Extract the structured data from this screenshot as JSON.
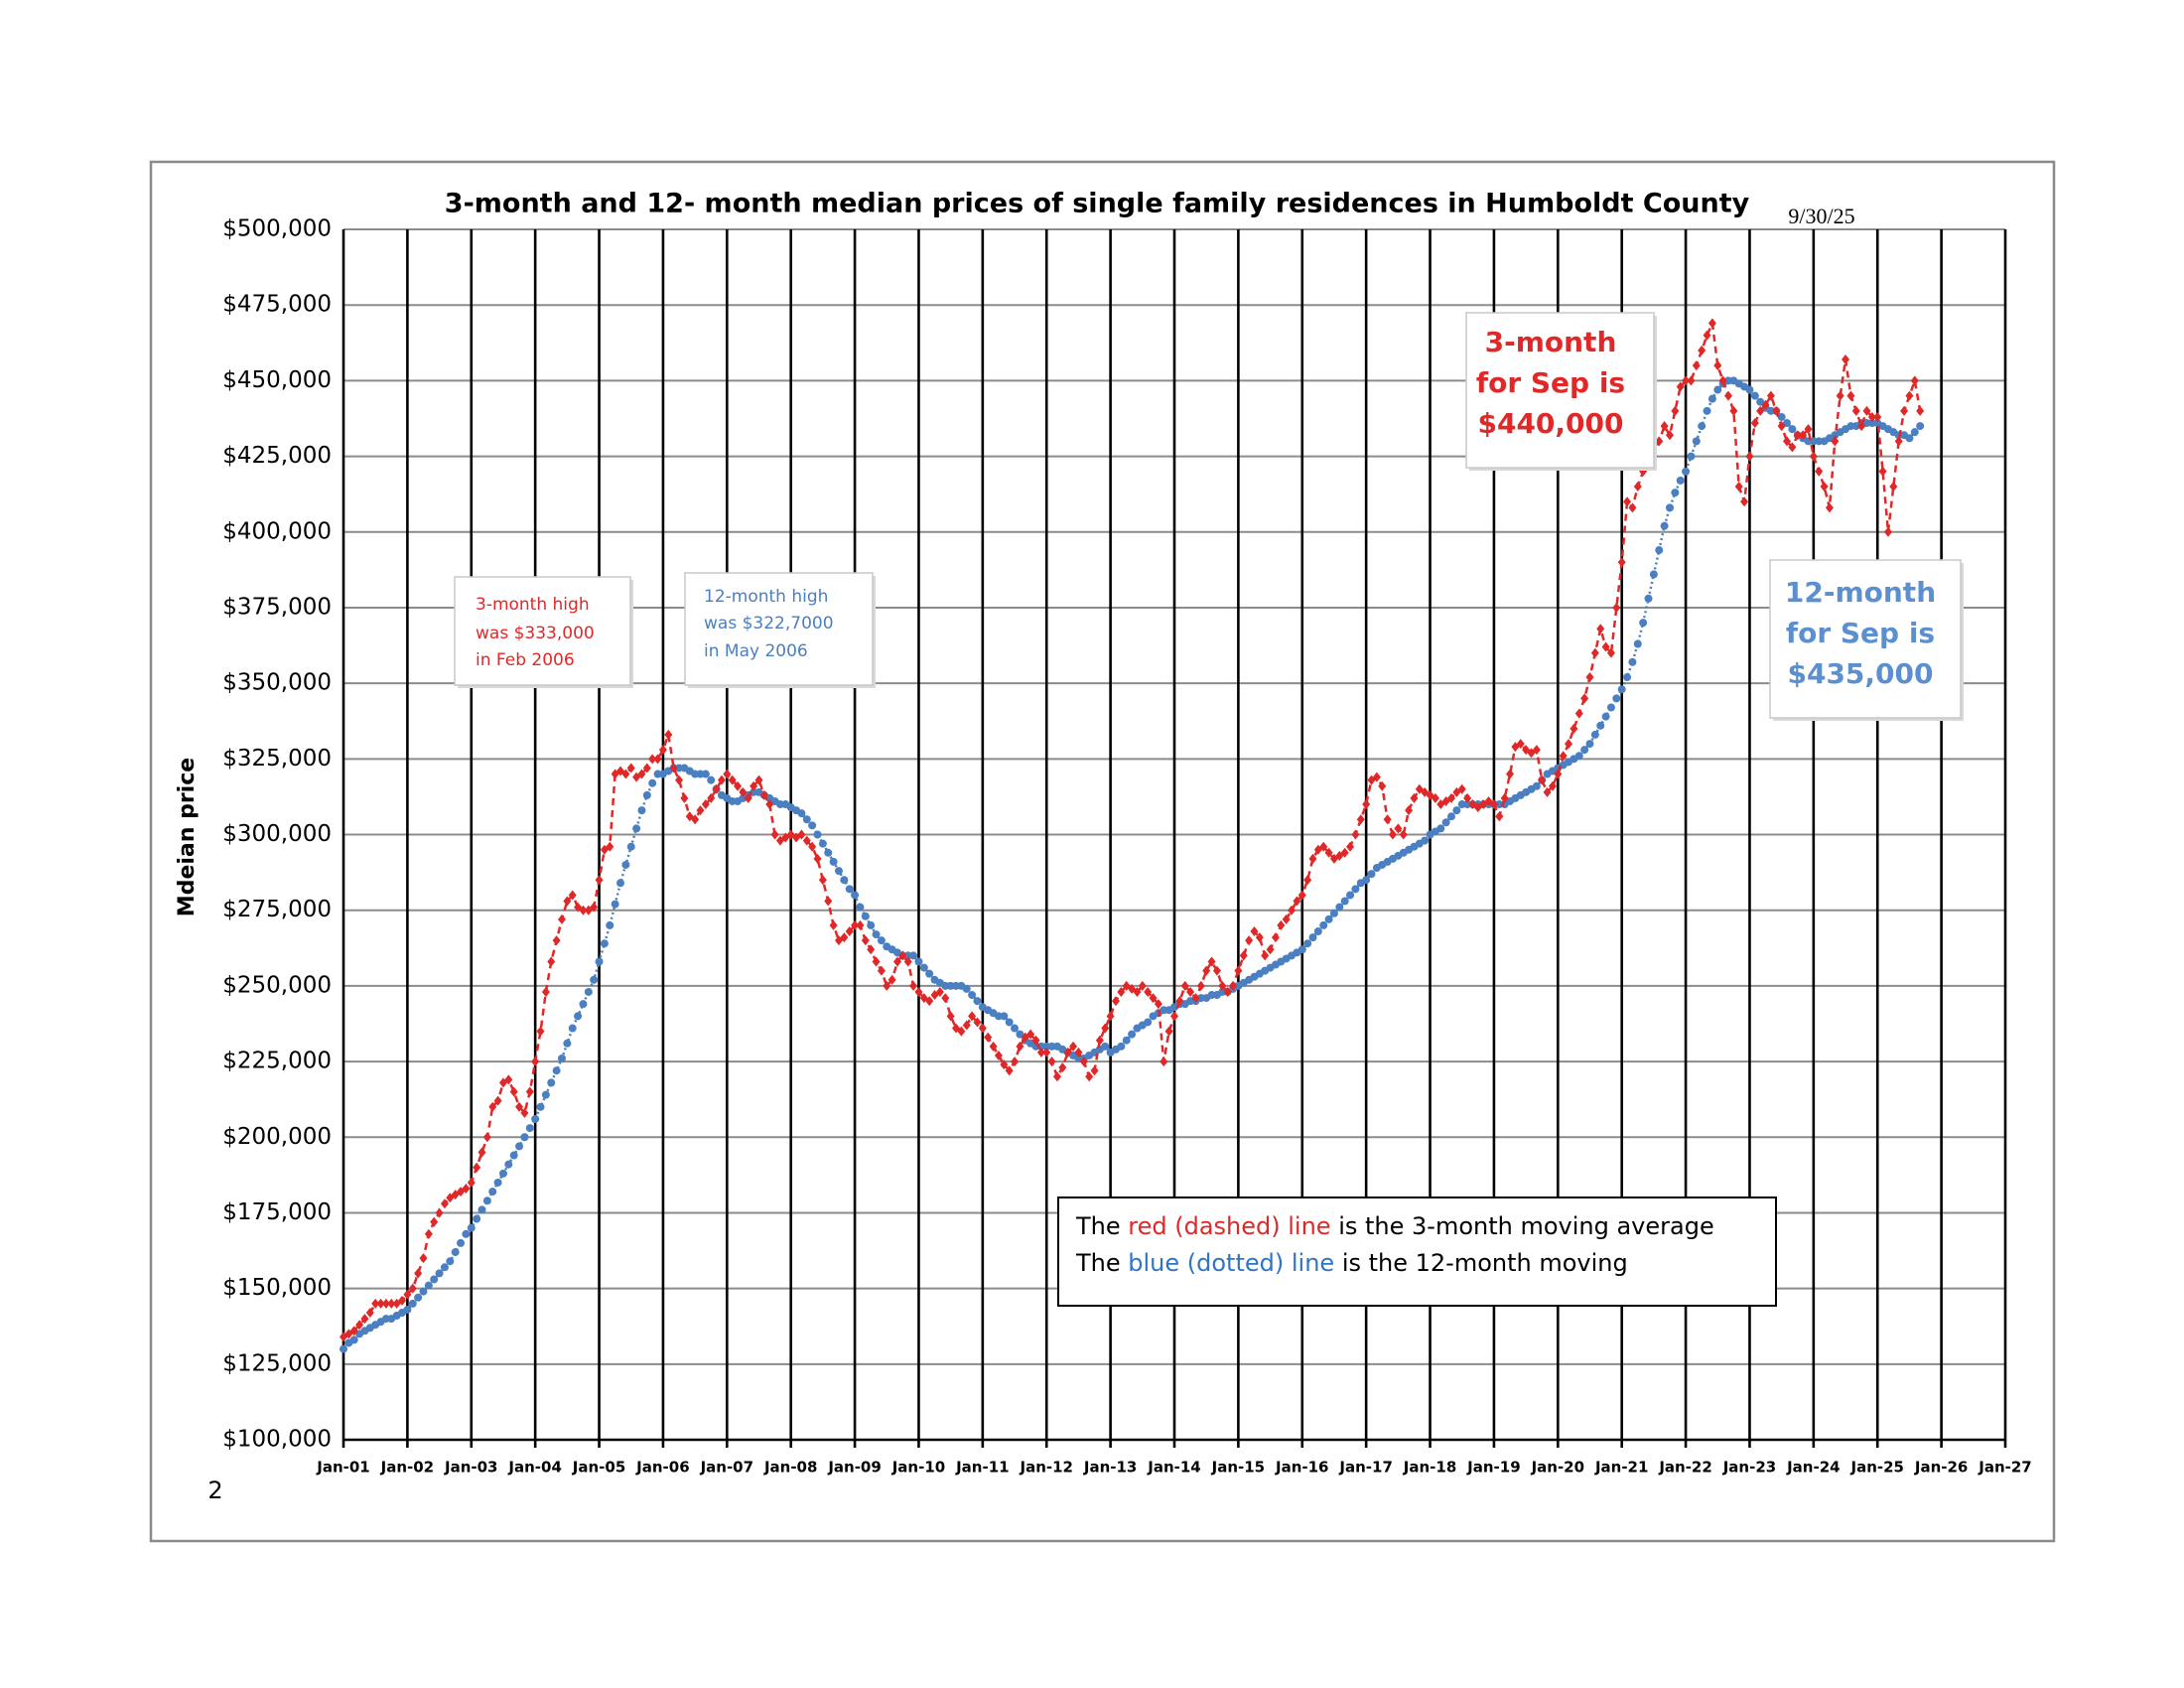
{
  "chart_data": {
    "type": "line",
    "title": "3-month and 12- month median prices of single family residences in Humboldt County",
    "date_label": "9/30/25",
    "ylabel": "Mdeian price",
    "page_number": "2",
    "grid": true,
    "xlim": [
      0,
      312
    ],
    "xticks": [
      {
        "value": 0,
        "label": "Jan-01"
      },
      {
        "value": 12,
        "label": "Jan-02"
      },
      {
        "value": 24,
        "label": "Jan-03"
      },
      {
        "value": 36,
        "label": "Jan-04"
      },
      {
        "value": 48,
        "label": "Jan-05"
      },
      {
        "value": 60,
        "label": "Jan-06"
      },
      {
        "value": 72,
        "label": "Jan-07"
      },
      {
        "value": 84,
        "label": "Jan-08"
      },
      {
        "value": 96,
        "label": "Jan-09"
      },
      {
        "value": 108,
        "label": "Jan-10"
      },
      {
        "value": 120,
        "label": "Jan-11"
      },
      {
        "value": 132,
        "label": "Jan-12"
      },
      {
        "value": 144,
        "label": "Jan-13"
      },
      {
        "value": 156,
        "label": "Jan-14"
      },
      {
        "value": 168,
        "label": "Jan-15"
      },
      {
        "value": 180,
        "label": "Jan-16"
      },
      {
        "value": 192,
        "label": "Jan-17"
      },
      {
        "value": 204,
        "label": "Jan-18"
      },
      {
        "value": 216,
        "label": "Jan-19"
      },
      {
        "value": 228,
        "label": "Jan-20"
      },
      {
        "value": 240,
        "label": "Jan-21"
      },
      {
        "value": 252,
        "label": "Jan-22"
      },
      {
        "value": 264,
        "label": "Jan-23"
      },
      {
        "value": 276,
        "label": "Jan-24"
      },
      {
        "value": 288,
        "label": "Jan-25"
      },
      {
        "value": 300,
        "label": "Jan-26"
      },
      {
        "value": 312,
        "label": "Jan-27"
      }
    ],
    "ylim": [
      100000,
      500000
    ],
    "yticks": [
      {
        "value": 100000,
        "label": "$100,000"
      },
      {
        "value": 125000,
        "label": "$125,000"
      },
      {
        "value": 150000,
        "label": "$150,000"
      },
      {
        "value": 175000,
        "label": "$175,000"
      },
      {
        "value": 200000,
        "label": "$200,000"
      },
      {
        "value": 225000,
        "label": "$225,000"
      },
      {
        "value": 250000,
        "label": "$250,000"
      },
      {
        "value": 275000,
        "label": "$275,000"
      },
      {
        "value": 300000,
        "label": "$300,000"
      },
      {
        "value": 325000,
        "label": "$325,000"
      },
      {
        "value": 350000,
        "label": "$350,000"
      },
      {
        "value": 375000,
        "label": "$375,000"
      },
      {
        "value": 400000,
        "label": "$400,000"
      },
      {
        "value": 425000,
        "label": "$425,000"
      },
      {
        "value": 450000,
        "label": "$450,000"
      },
      {
        "value": 475000,
        "label": "$475,000"
      },
      {
        "value": 500000,
        "label": "$500,000"
      }
    ],
    "x": [
      0,
      1,
      2,
      3,
      4,
      5,
      6,
      7,
      8,
      9,
      10,
      11,
      12,
      13,
      14,
      15,
      16,
      17,
      18,
      19,
      20,
      21,
      22,
      23,
      24,
      25,
      26,
      27,
      28,
      29,
      30,
      31,
      32,
      33,
      34,
      35,
      36,
      37,
      38,
      39,
      40,
      41,
      42,
      43,
      44,
      45,
      46,
      47,
      48,
      49,
      50,
      51,
      52,
      53,
      54,
      55,
      56,
      57,
      58,
      59,
      60,
      61,
      62,
      63,
      64,
      65,
      66,
      67,
      68,
      69,
      70,
      71,
      72,
      73,
      74,
      75,
      76,
      77,
      78,
      79,
      80,
      81,
      82,
      83,
      84,
      85,
      86,
      87,
      88,
      89,
      90,
      91,
      92,
      93,
      94,
      95,
      96,
      97,
      98,
      99,
      100,
      101,
      102,
      103,
      104,
      105,
      106,
      107,
      108,
      109,
      110,
      111,
      112,
      113,
      114,
      115,
      116,
      117,
      118,
      119,
      120,
      121,
      122,
      123,
      124,
      125,
      126,
      127,
      128,
      129,
      130,
      131,
      132,
      133,
      134,
      135,
      136,
      137,
      138,
      139,
      140,
      141,
      142,
      143,
      144,
      145,
      146,
      147,
      148,
      149,
      150,
      151,
      152,
      153,
      154,
      155,
      156,
      157,
      158,
      159,
      160,
      161,
      162,
      163,
      164,
      165,
      166,
      167,
      168,
      169,
      170,
      171,
      172,
      173,
      174,
      175,
      176,
      177,
      178,
      179,
      180,
      181,
      182,
      183,
      184,
      185,
      186,
      187,
      188,
      189,
      190,
      191,
      192,
      193,
      194,
      195,
      196,
      197,
      198,
      199,
      200,
      201,
      202,
      203,
      204,
      205,
      206,
      207,
      208,
      209,
      210,
      211,
      212,
      213,
      214,
      215,
      216,
      217,
      218,
      219,
      220,
      221,
      222,
      223,
      224,
      225,
      226,
      227,
      228,
      229,
      230,
      231,
      232,
      233,
      234,
      235,
      236,
      237,
      238,
      239,
      240,
      241,
      242,
      243,
      244,
      245,
      246,
      247,
      248,
      249,
      250,
      251,
      252,
      253,
      254,
      255,
      256,
      257,
      258,
      259,
      260,
      261,
      262,
      263,
      264,
      265,
      266,
      267,
      268,
      269,
      270,
      271,
      272,
      273,
      274,
      275,
      276,
      277,
      278,
      279,
      280,
      281,
      282,
      283,
      284,
      285,
      286,
      287,
      288,
      289,
      290,
      291,
      292,
      293,
      294,
      295,
      296
    ],
    "series": [
      {
        "color": "#4a7fc1",
        "style": "dotted",
        "marker": "circle",
        "values": [
          130000,
          132000,
          133000,
          135000,
          136000,
          137000,
          138000,
          139000,
          140000,
          140000,
          141000,
          142000,
          143000,
          145000,
          147000,
          149000,
          151000,
          153000,
          155000,
          157000,
          159000,
          162000,
          165000,
          168000,
          170000,
          173000,
          176000,
          179000,
          182000,
          185000,
          188000,
          191000,
          194000,
          197000,
          200000,
          203000,
          206000,
          210000,
          214000,
          218000,
          222000,
          226000,
          231000,
          236000,
          240000,
          244000,
          248000,
          252000,
          258000,
          264000,
          270000,
          277000,
          284000,
          290000,
          296000,
          302000,
          308000,
          313000,
          317000,
          320000,
          320000,
          321000,
          322000,
          322000,
          322000,
          321000,
          320000,
          320000,
          320000,
          318000,
          315000,
          313000,
          312000,
          311000,
          311000,
          312000,
          313000,
          314000,
          314000,
          313000,
          312000,
          311000,
          310000,
          310000,
          309000,
          308000,
          307000,
          305000,
          303000,
          300000,
          297000,
          294000,
          291000,
          288000,
          285000,
          282000,
          280000,
          276000,
          273000,
          270000,
          267000,
          265000,
          263000,
          262000,
          261000,
          260000,
          260000,
          260000,
          258000,
          256000,
          254000,
          252000,
          251000,
          250000,
          250000,
          250000,
          250000,
          249000,
          247000,
          245000,
          243000,
          242000,
          241000,
          240000,
          240000,
          238000,
          236000,
          234000,
          232000,
          231000,
          230000,
          230000,
          230000,
          230000,
          230000,
          229000,
          228000,
          227000,
          226000,
          226000,
          227000,
          228000,
          229000,
          230000,
          228000,
          229000,
          230000,
          232000,
          234000,
          236000,
          237000,
          238000,
          240000,
          241000,
          242000,
          242000,
          243000,
          244000,
          244000,
          245000,
          245000,
          246000,
          246000,
          247000,
          247000,
          248000,
          248000,
          249000,
          250000,
          251000,
          252000,
          253000,
          254000,
          255000,
          256000,
          257000,
          258000,
          259000,
          260000,
          261000,
          262000,
          264000,
          266000,
          268000,
          270000,
          272000,
          274000,
          276000,
          278000,
          280000,
          282000,
          284000,
          285000,
          287000,
          289000,
          290000,
          291000,
          292000,
          293000,
          294000,
          295000,
          296000,
          297000,
          298000,
          300000,
          301000,
          302000,
          304000,
          306000,
          308000,
          310000,
          310000,
          310000,
          310000,
          310000,
          310000,
          310000,
          310000,
          310000,
          311000,
          312000,
          313000,
          314000,
          315000,
          316000,
          318000,
          320000,
          321000,
          322000,
          323000,
          324000,
          325000,
          326000,
          328000,
          330000,
          333000,
          336000,
          339000,
          342000,
          345000,
          348000,
          352000,
          357000,
          363000,
          370000,
          378000,
          386000,
          394000,
          402000,
          408000,
          413000,
          417000,
          420000,
          425000,
          430000,
          435000,
          440000,
          444000,
          447000,
          449000,
          450000,
          450000,
          449000,
          448000,
          447000,
          445000,
          443000,
          441000,
          440000,
          440000,
          438000,
          436000,
          434000,
          432000,
          431000,
          430000,
          430000,
          430000,
          430000,
          431000,
          432000,
          433000,
          434000,
          435000,
          435000,
          436000,
          436000,
          436000,
          436000,
          435000,
          434000,
          433000,
          432000,
          432000,
          431000,
          433000,
          435000
        ]
      },
      {
        "color": "#e02828",
        "style": "dashed",
        "marker": "diamond",
        "values": [
          134000,
          135000,
          136000,
          138000,
          140000,
          142000,
          145000,
          145000,
          145000,
          145000,
          145000,
          146000,
          148000,
          150000,
          155000,
          160000,
          168000,
          172000,
          175000,
          178000,
          180000,
          181000,
          182000,
          183000,
          185000,
          190000,
          195000,
          200000,
          210000,
          212000,
          218000,
          219000,
          215000,
          210000,
          208000,
          215000,
          225000,
          235000,
          248000,
          258000,
          265000,
          272000,
          278000,
          280000,
          276000,
          275000,
          275000,
          276000,
          285000,
          295000,
          296000,
          320000,
          321000,
          320000,
          322000,
          319000,
          320000,
          322000,
          325000,
          325000,
          328000,
          333000,
          322000,
          318000,
          312000,
          306000,
          305000,
          308000,
          310000,
          312000,
          315000,
          318000,
          320000,
          318000,
          316000,
          314000,
          312000,
          316000,
          318000,
          313000,
          310000,
          300000,
          298000,
          299000,
          300000,
          299000,
          300000,
          298000,
          296000,
          292000,
          285000,
          278000,
          270000,
          265000,
          266000,
          268000,
          270000,
          270000,
          265000,
          262000,
          258000,
          255000,
          250000,
          252000,
          258000,
          260000,
          258000,
          250000,
          248000,
          246000,
          245000,
          247000,
          248000,
          246000,
          240000,
          236000,
          235000,
          237000,
          240000,
          238000,
          236000,
          233000,
          230000,
          227000,
          224000,
          222000,
          225000,
          230000,
          233000,
          234000,
          232000,
          228000,
          228000,
          225000,
          220000,
          223000,
          228000,
          230000,
          228000,
          225000,
          220000,
          222000,
          232000,
          236000,
          240000,
          245000,
          248000,
          250000,
          249000,
          248000,
          250000,
          248000,
          246000,
          244000,
          225000,
          235000,
          240000,
          245000,
          250000,
          248000,
          246000,
          250000,
          255000,
          258000,
          255000,
          250000,
          248000,
          250000,
          255000,
          260000,
          265000,
          268000,
          266000,
          260000,
          262000,
          266000,
          270000,
          272000,
          275000,
          278000,
          280000,
          285000,
          292000,
          295000,
          296000,
          294000,
          292000,
          293000,
          294000,
          296000,
          300000,
          305000,
          310000,
          318000,
          319000,
          316000,
          305000,
          300000,
          302000,
          300000,
          308000,
          312000,
          315000,
          314000,
          313000,
          312000,
          310000,
          311000,
          312000,
          314000,
          315000,
          312000,
          310000,
          309000,
          310000,
          311000,
          310000,
          306000,
          312000,
          320000,
          329000,
          330000,
          328000,
          327000,
          328000,
          318000,
          314000,
          316000,
          320000,
          326000,
          330000,
          335000,
          340000,
          345000,
          352000,
          360000,
          368000,
          362000,
          360000,
          375000,
          390000,
          410000,
          408000,
          415000,
          420000,
          422000,
          425000,
          430000,
          435000,
          432000,
          440000,
          448000,
          450000,
          450000,
          455000,
          460000,
          465000,
          469000,
          455000,
          450000,
          445000,
          440000,
          415000,
          410000,
          425000,
          436000,
          440000,
          442000,
          445000,
          440000,
          435000,
          430000,
          428000,
          432000,
          432000,
          434000,
          425000,
          420000,
          415000,
          408000,
          430000,
          445000,
          457000,
          445000,
          440000,
          435000,
          440000,
          438000,
          438000,
          420000,
          400000,
          415000,
          430000,
          440000,
          445000,
          450000,
          440000
        ]
      }
    ],
    "annotations": [
      {
        "lines": [
          "3-month high",
          "was $333,000",
          "in Feb 2006"
        ],
        "color": "#e02828",
        "bold": false
      },
      {
        "lines": [
          "12-month high",
          "was $322,7000",
          "in May 2006"
        ],
        "color": "#4a7fc1",
        "bold": false
      },
      {
        "lines": [
          "3-month",
          "for Sep is",
          "$440,000"
        ],
        "color": "#e02828",
        "bold": true
      },
      {
        "lines": [
          "12-month",
          "for Sep is",
          "$435,000"
        ],
        "color": "#5b8fd0",
        "bold": true
      }
    ],
    "legend_note": [
      [
        {
          "text": "The ",
          "color": "#000000"
        },
        {
          "text": "red (dashed) line",
          "color": "#e02828"
        },
        {
          "text": " is the 3-month moving average",
          "color": "#000000"
        }
      ],
      [
        {
          "text": "The ",
          "color": "#000000"
        },
        {
          "text": "blue (dotted) line",
          "color": "#2e75c8"
        },
        {
          "text": " is the 12-month moving",
          "color": "#000000"
        }
      ]
    ]
  }
}
